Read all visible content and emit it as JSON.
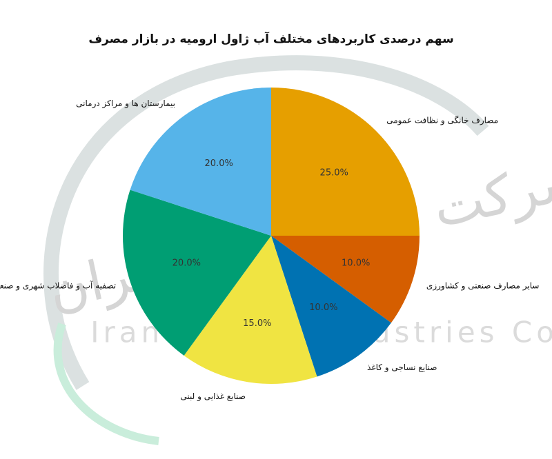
{
  "chart_data": {
    "type": "pie",
    "title": "سهم درصدی کاربردهای مختلف آب ژاول ارومیه در بازار مصرف",
    "categories": [
      "مصارف خانگی و نظافت عمومی",
      "سایر مصارف صنعتی و کشاورزی",
      "صنایع نساجی و کاغذ",
      "صنایع غذایی و لبنی",
      "تصفیه آب و فاضلاب شهری و صنعتی",
      "بیمارستان ها و مراکز درمانی"
    ],
    "values": [
      25,
      10,
      10,
      15,
      20,
      20
    ],
    "value_labels": [
      "25.0%",
      "10.0%",
      "10.0%",
      "15.0%",
      "20.0%",
      "20.0%"
    ],
    "colors": [
      "#e69f00",
      "#d55e00",
      "#0072b2",
      "#f0e442",
      "#009e73",
      "#56b4e9"
    ],
    "start_angle": 90,
    "clockwise": true
  },
  "watermark": {
    "latin": "Iran Zhavel Industries Co",
    "persian": "شرکت صنایع ژاول ایران"
  }
}
